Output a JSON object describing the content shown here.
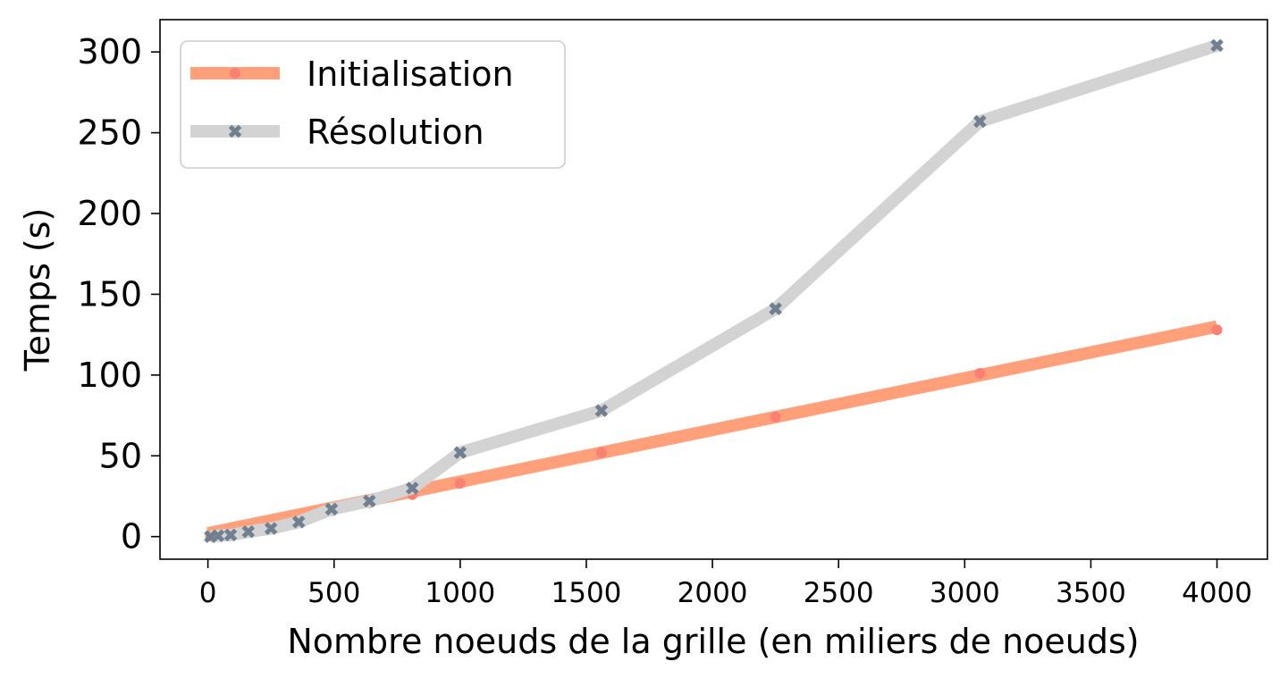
{
  "chart_data": {
    "type": "line",
    "xlabel": "Nombre noeuds de la grille (en miliers de noeuds)",
    "ylabel": "Temps (s)",
    "xlim": [
      -190,
      4200
    ],
    "ylim": [
      -14,
      320
    ],
    "xticks": [
      0,
      500,
      1000,
      1500,
      2000,
      2500,
      3000,
      3500,
      4000
    ],
    "yticks": [
      0,
      50,
      100,
      150,
      200,
      250,
      300
    ],
    "xtick_labels": [
      "0",
      "500",
      "1000",
      "1500",
      "2000",
      "2500",
      "3000",
      "3500",
      "4000"
    ],
    "ytick_labels": [
      "0",
      "50",
      "100",
      "150",
      "200",
      "250",
      "300"
    ],
    "grid": false,
    "legend_position": "top-left",
    "series": [
      {
        "name": "Initialisation",
        "line_color": "#ffa07a",
        "marker_color": "#fa8072",
        "marker": "circle",
        "fit": [
          [
            0,
            2
          ],
          [
            4000,
            130
          ]
        ],
        "x": [
          10,
          40,
          90,
          160,
          250,
          360,
          490,
          640,
          810,
          1000,
          1560,
          2250,
          3060,
          4000
        ],
        "y": [
          0.3,
          0.8,
          1.6,
          3,
          5,
          9,
          16,
          21,
          26,
          33,
          52,
          74,
          101,
          128
        ]
      },
      {
        "name": "Résolution",
        "line_color": "#d3d3d3",
        "marker_color": "#708090",
        "marker": "x",
        "x": [
          10,
          40,
          90,
          160,
          250,
          360,
          490,
          640,
          810,
          1000,
          1560,
          2250,
          3060,
          4000
        ],
        "y": [
          0,
          0.5,
          1,
          3,
          5,
          9,
          17,
          22,
          30,
          52,
          78,
          141,
          257,
          304
        ]
      }
    ]
  }
}
